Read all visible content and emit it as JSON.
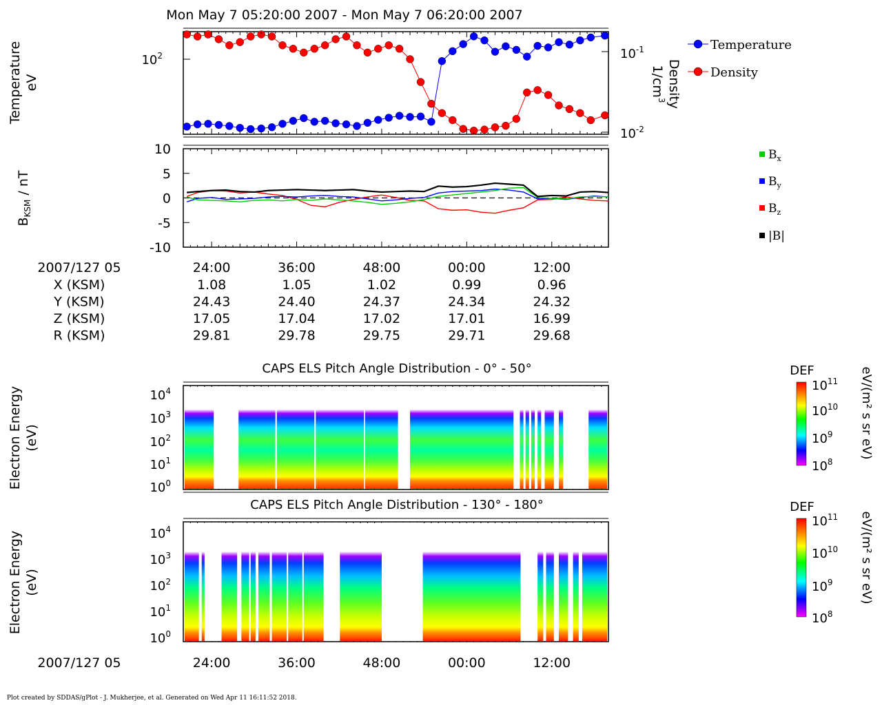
{
  "page": {
    "title": "Mon May 7 05:20:00 2007 - Mon May 7 06:20:00 2007",
    "footer": "Plot created by SDDAS/gPlot - J. Mukherjee, et al.  Generated on Wed Apr 11 16:11:52 2018."
  },
  "colors": {
    "temperature": "#0000ff",
    "density": "#ff0000",
    "bx": "#00cc00",
    "by": "#0000ff",
    "bz": "#ff0000",
    "btot": "#000000",
    "spectro_scale": [
      "#ff00ff",
      "#0000ff",
      "#00ffff",
      "#00ff00",
      "#ffff00",
      "#ff8000",
      "#ff0000"
    ]
  },
  "chart_data": [
    {
      "type": "scatter",
      "panel": "plasma-moments",
      "ylabel_left": [
        "Temperature",
        "eV"
      ],
      "ylabel_right": [
        "Density",
        "1/cm"
      ],
      "ylabel_right_sup": "3",
      "left_ticks": [
        {
          "label": "10",
          "exp": "2"
        }
      ],
      "right_ticks": [
        {
          "label": "10",
          "exp": "-1"
        },
        {
          "label": "10",
          "exp": "-2"
        }
      ],
      "ylim_left": [
        3,
        200
      ],
      "ylim_right": [
        0.0095,
        0.16
      ],
      "x_start_min": 20,
      "x_end_min": 80,
      "series": [
        {
          "name": "Temperature",
          "legend": "Temperature",
          "axis": "left",
          "color": "#0000ff",
          "x": [
            20.5,
            22,
            23.5,
            25,
            26.5,
            28,
            29.5,
            31,
            32.5,
            34,
            35.5,
            37,
            38.5,
            40,
            41.5,
            43,
            44.5,
            46,
            47.5,
            49,
            50.5,
            52,
            53.5,
            55,
            56.5,
            58,
            59.5,
            61,
            62.5,
            64,
            65.5,
            67,
            68.5,
            70,
            71.5,
            73,
            74.5,
            76,
            77.5,
            79.5
          ],
          "y": [
            4.1,
            4.5,
            4.6,
            4.4,
            4.2,
            3.9,
            3.7,
            3.8,
            4.0,
            4.6,
            5.2,
            5.8,
            5.0,
            5.2,
            4.7,
            4.5,
            4.2,
            4.8,
            5.4,
            5.9,
            6.4,
            6.1,
            6.2,
            5.0,
            60,
            90,
            120,
            165,
            140,
            88,
            110,
            95,
            72,
            112,
            105,
            130,
            118,
            140,
            158,
            170
          ]
        },
        {
          "name": "Density",
          "legend": "Density",
          "axis": "right",
          "color": "#ff0000",
          "x": [
            20.5,
            22,
            23.5,
            25,
            26.5,
            28,
            29.5,
            31,
            32.5,
            34,
            35.5,
            37,
            38.5,
            40,
            41.5,
            43,
            44.5,
            46,
            47.5,
            49,
            50.5,
            52,
            53.5,
            55,
            56.5,
            58,
            59.5,
            61,
            62.5,
            64,
            65.5,
            67,
            68.5,
            70,
            71.5,
            73,
            74.5,
            76,
            77.5,
            79.5
          ],
          "y": [
            0.15,
            0.14,
            0.15,
            0.13,
            0.11,
            0.12,
            0.14,
            0.15,
            0.14,
            0.11,
            0.1,
            0.09,
            0.1,
            0.11,
            0.13,
            0.14,
            0.11,
            0.09,
            0.1,
            0.11,
            0.1,
            0.075,
            0.04,
            0.022,
            0.017,
            0.014,
            0.011,
            0.0105,
            0.0108,
            0.0115,
            0.012,
            0.0145,
            0.03,
            0.032,
            0.028,
            0.021,
            0.019,
            0.017,
            0.014,
            0.016
          ]
        }
      ]
    },
    {
      "type": "line",
      "panel": "magnetic-field",
      "ylabel": "B",
      "ylabel_sub": "KSM",
      "ylabel_unit": " / nT",
      "ylim": [
        -10,
        10
      ],
      "yticks": [
        10,
        5,
        0,
        -5,
        -10
      ],
      "x_start_min": 20,
      "x_end_min": 80,
      "series": [
        {
          "name": "|B|",
          "color": "#000000",
          "x": [
            20.5,
            22,
            24,
            26,
            28,
            30,
            32,
            34,
            36,
            38,
            40,
            42,
            44,
            46,
            48,
            50,
            52,
            54,
            56,
            58,
            60,
            62,
            64,
            66,
            68,
            70,
            72,
            74,
            76,
            78,
            80
          ],
          "y": [
            1.1,
            1.3,
            1.5,
            1.6,
            1.3,
            1.2,
            1.5,
            1.6,
            1.7,
            1.6,
            1.5,
            1.6,
            1.7,
            1.4,
            1.2,
            1.3,
            1.4,
            1.3,
            2.4,
            2.2,
            2.3,
            2.6,
            3.0,
            2.8,
            2.6,
            0.3,
            0.5,
            0.4,
            1.2,
            1.3,
            1.1
          ]
        },
        {
          "name": "Bx",
          "color": "#00cc00",
          "x": [
            20.5,
            22,
            24,
            26,
            28,
            30,
            32,
            34,
            36,
            38,
            40,
            42,
            44,
            46,
            48,
            50,
            52,
            54,
            56,
            58,
            60,
            62,
            64,
            66,
            68,
            70,
            72,
            74,
            76,
            78,
            80
          ],
          "y": [
            0.2,
            -0.4,
            -0.5,
            -0.6,
            -0.8,
            -0.5,
            -0.4,
            -0.6,
            -0.3,
            -0.5,
            -0.2,
            -0.4,
            -0.6,
            -0.9,
            -1.3,
            -1.1,
            -0.8,
            -0.3,
            0.3,
            0.6,
            0.9,
            1.2,
            1.5,
            2.0,
            2.1,
            0.1,
            -0.1,
            -0.2,
            0.2,
            0.3,
            0.2
          ]
        },
        {
          "name": "By",
          "color": "#0000ff",
          "x": [
            20.5,
            22,
            24,
            26,
            28,
            30,
            32,
            34,
            36,
            38,
            40,
            42,
            44,
            46,
            48,
            50,
            52,
            54,
            56,
            58,
            60,
            62,
            64,
            66,
            68,
            70,
            72,
            74,
            76,
            78,
            80
          ],
          "y": [
            -0.8,
            -0.1,
            0.1,
            -0.3,
            -0.2,
            -0.1,
            0.2,
            0.3,
            0.2,
            0.4,
            0.5,
            0.3,
            0.2,
            -0.2,
            -0.6,
            -0.4,
            -0.1,
            0.1,
            1.0,
            1.3,
            1.4,
            1.5,
            1.8,
            1.6,
            1.2,
            -0.2,
            -0.1,
            -0.3,
            0.1,
            0.4,
            0.2
          ]
        },
        {
          "name": "Bz",
          "color": "#ff0000",
          "x": [
            20.5,
            22,
            24,
            26,
            28,
            30,
            32,
            34,
            36,
            38,
            40,
            42,
            44,
            46,
            48,
            50,
            52,
            54,
            56,
            58,
            60,
            62,
            64,
            66,
            68,
            70,
            72,
            74,
            76,
            78,
            80
          ],
          "y": [
            0.3,
            1.1,
            1.5,
            1.4,
            1.0,
            1.2,
            0.8,
            0.5,
            -0.3,
            -1.5,
            -1.8,
            -0.9,
            -0.3,
            0.2,
            0.6,
            0.1,
            -0.5,
            -0.6,
            -2.2,
            -2.5,
            -2.4,
            -2.9,
            -3.1,
            -2.5,
            -2.0,
            -0.4,
            -0.3,
            0.2,
            -0.2,
            -0.5,
            -0.6
          ]
        }
      ]
    },
    {
      "type": "heatmap",
      "panel": "els-0-50",
      "title": "CAPS ELS Pitch Angle Distribution - 0° - 50°",
      "ylabel": [
        "Electron Energy",
        "(eV)"
      ],
      "yticks": [
        {
          "label": "10",
          "exp": "4"
        },
        {
          "label": "10",
          "exp": "3"
        },
        {
          "label": "10",
          "exp": "2"
        },
        {
          "label": "10",
          "exp": "1"
        },
        {
          "label": "10",
          "exp": "0"
        }
      ],
      "colorbar_title": "DEF",
      "colorbar_ticks": [
        {
          "label": "10",
          "exp": "11"
        },
        {
          "label": "10",
          "exp": "10"
        },
        {
          "label": "10",
          "exp": "9"
        },
        {
          "label": "10",
          "exp": "8"
        }
      ],
      "colorbar_unit": "eV/(m² s sr eV)",
      "data_gaps_min": [
        [
          24.3,
          27.8
        ],
        [
          33.0,
          33.2
        ],
        [
          38.5,
          38.7
        ],
        [
          45.5,
          45.6
        ],
        [
          50.3,
          52.0
        ],
        [
          66.6,
          67.5
        ],
        [
          68.0,
          68.3
        ],
        [
          68.8,
          69.1
        ],
        [
          69.6,
          70.0
        ],
        [
          70.5,
          71.0
        ],
        [
          72.3,
          73.0
        ],
        [
          73.6,
          77.2
        ]
      ]
    },
    {
      "type": "heatmap",
      "panel": "els-130-180",
      "title": "CAPS ELS Pitch Angle Distribution - 130° - 180°",
      "ylabel": [
        "Electron Energy",
        "(eV)"
      ],
      "yticks": [
        {
          "label": "10",
          "exp": "4"
        },
        {
          "label": "10",
          "exp": "3"
        },
        {
          "label": "10",
          "exp": "2"
        },
        {
          "label": "10",
          "exp": "1"
        },
        {
          "label": "10",
          "exp": "0"
        }
      ],
      "colorbar_title": "DEF",
      "colorbar_ticks": [
        {
          "label": "10",
          "exp": "11"
        },
        {
          "label": "10",
          "exp": "10"
        },
        {
          "label": "10",
          "exp": "9"
        },
        {
          "label": "10",
          "exp": "8"
        }
      ],
      "colorbar_unit": "eV/(m² s sr eV)",
      "data_gaps_min": [
        [
          22.2,
          22.6
        ],
        [
          23.0,
          25.4
        ],
        [
          27.6,
          28.2
        ],
        [
          29.3,
          29.5
        ],
        [
          30.2,
          30.6
        ],
        [
          32.2,
          32.5
        ],
        [
          34.6,
          34.8
        ],
        [
          36.8,
          37.0
        ],
        [
          39.8,
          42.1
        ],
        [
          48.0,
          53.8
        ],
        [
          67.6,
          70.0
        ],
        [
          70.8,
          71.2
        ],
        [
          72.3,
          73.0
        ],
        [
          74.3,
          75.0
        ],
        [
          75.8,
          76.3
        ]
      ]
    }
  ],
  "time_axis": {
    "date_label": "2007/127 05",
    "ticks": [
      "24:00",
      "36:00",
      "48:00",
      "00:00",
      "12:00"
    ],
    "tick_minutes": [
      24,
      36,
      48,
      60,
      72
    ]
  },
  "ephemeris": {
    "rows": [
      {
        "label": "X (KSM)",
        "values": [
          "1.08",
          "1.05",
          "1.02",
          "0.99",
          "0.96"
        ]
      },
      {
        "label": "Y (KSM)",
        "values": [
          "24.43",
          "24.40",
          "24.37",
          "24.34",
          "24.32"
        ]
      },
      {
        "label": "Z (KSM)",
        "values": [
          "17.05",
          "17.04",
          "17.02",
          "17.01",
          "16.99"
        ]
      },
      {
        "label": "R (KSM)",
        "values": [
          "29.81",
          "29.78",
          "29.75",
          "29.71",
          "29.68"
        ]
      }
    ]
  },
  "legend_b": {
    "bx": {
      "label": "B",
      "sub": "x"
    },
    "by": {
      "label": "B",
      "sub": "y"
    },
    "bz": {
      "label": "B",
      "sub": "z"
    },
    "btot": {
      "label": "|B|"
    }
  }
}
